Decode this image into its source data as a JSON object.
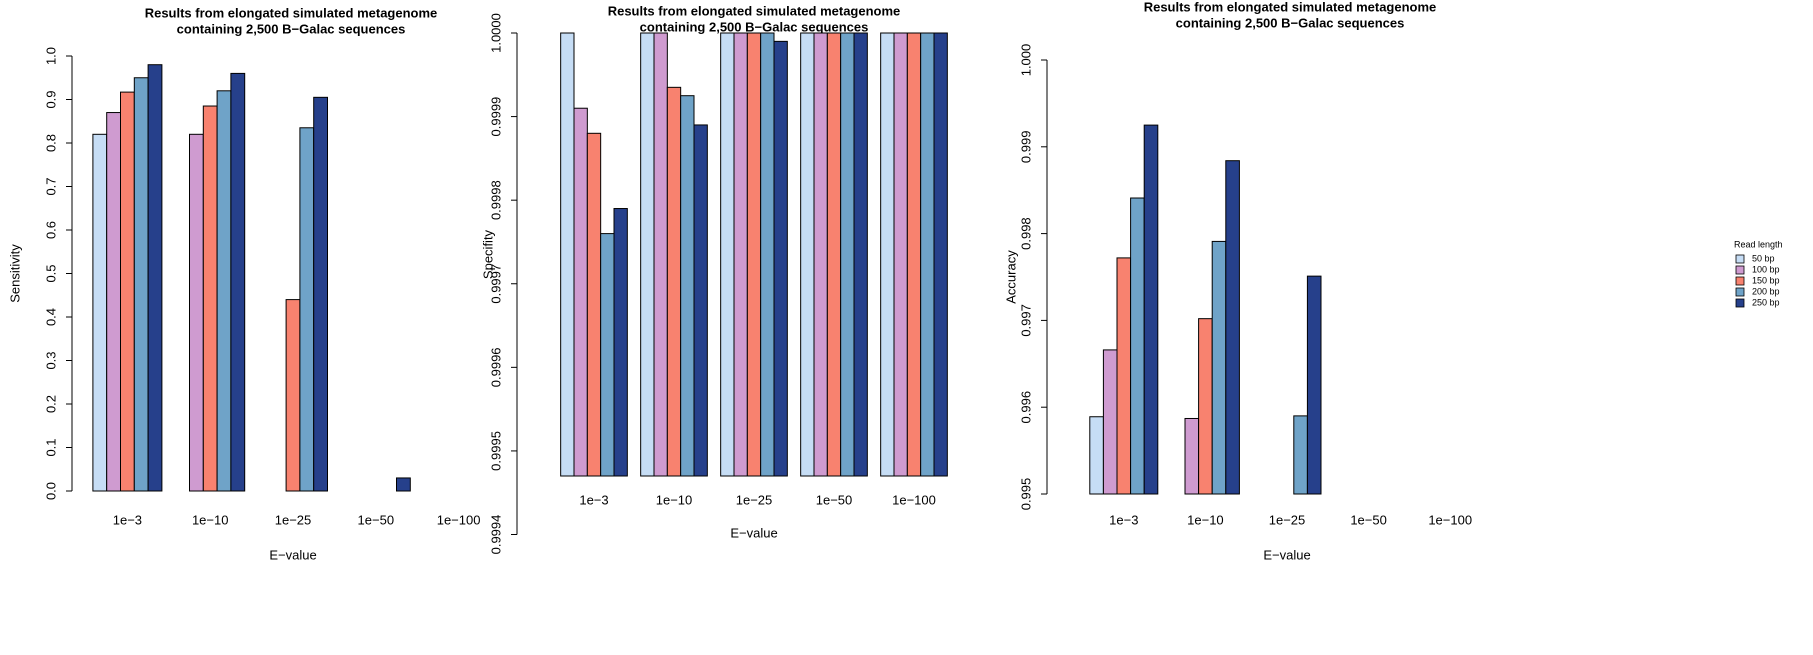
{
  "chart_data": [
    {
      "type": "bar",
      "title": [
        "Results from elongated simulated metagenome",
        "containing 2,500 B−Galac sequences"
      ],
      "x_label": "E−value",
      "y_label": "Sensitivity",
      "categories": [
        "1e−3",
        "1e−10",
        "1e−25",
        "1e−50",
        "1e−100"
      ],
      "series": [
        {
          "name": "50 bp",
          "color": "#c6ddf5",
          "values": [
            0.82,
            0,
            0,
            0,
            0
          ]
        },
        {
          "name": "100 bp",
          "color": "#cf9bd0",
          "values": [
            0.87,
            0.82,
            0,
            0,
            0
          ]
        },
        {
          "name": "150 bp",
          "color": "#f8826f",
          "values": [
            0.917,
            0.885,
            0.44,
            0,
            0
          ]
        },
        {
          "name": "200 bp",
          "color": "#6fa3c8",
          "values": [
            0.95,
            0.92,
            0.835,
            0,
            0
          ]
        },
        {
          "name": "250 bp",
          "color": "#26408b",
          "values": [
            0.98,
            0.96,
            0.905,
            0.03,
            0
          ]
        }
      ],
      "ylim": [
        0,
        1
      ],
      "yticks": [
        {
          "value": 0,
          "label": "0.0"
        },
        0.1,
        0.2,
        0.3,
        0.4,
        0.5,
        0.6,
        0.7,
        0.8,
        0.9,
        {
          "value": 1,
          "label": "1.0"
        }
      ]
    },
    {
      "type": "bar",
      "title": [
        "Results from elongated simulated metagenome",
        "containing 2,500 B−Galac sequences"
      ],
      "x_label": "E−value",
      "y_label": "Specifity",
      "categories": [
        "1e−3",
        "1e−10",
        "1e−25",
        "1e−50",
        "1e−100"
      ],
      "series": [
        {
          "name": "50 bp",
          "color": "#c6ddf5",
          "values": [
            1,
            1,
            1,
            1,
            1
          ]
        },
        {
          "name": "100 bp",
          "color": "#cf9bd0",
          "values": [
            0.99991,
            1,
            1,
            1,
            1
          ]
        },
        {
          "name": "150 bp",
          "color": "#f8826f",
          "values": [
            0.99988,
            0.999935,
            1,
            1,
            1
          ]
        },
        {
          "name": "200 bp",
          "color": "#6fa3c8",
          "values": [
            0.99976,
            0.999925,
            1,
            1,
            1
          ]
        },
        {
          "name": "250 bp",
          "color": "#26408b",
          "values": [
            0.99979,
            0.99989,
            0.99999,
            1,
            1
          ]
        }
      ],
      "ylim": [
        0.99947,
        1
      ],
      "yticks": [
        0.9994,
        0.9995,
        0.9996,
        0.9997,
        0.9998,
        0.9999,
        {
          "value": 1,
          "label": "1.0000"
        }
      ]
    },
    {
      "type": "bar",
      "title": [
        "Results from elongated simulated metagenome",
        "containing 2,500 B−Galac sequences"
      ],
      "x_label": "E−value",
      "y_label": "Accuracy",
      "legend_title": "Read length",
      "legend": "right",
      "categories": [
        "1e−3",
        "1e−10",
        "1e−25",
        "1e−50",
        "1e−100"
      ],
      "series": [
        {
          "name": "50 bp",
          "color": "#c6ddf5",
          "values": [
            0.99589,
            null,
            null,
            null,
            null
          ]
        },
        {
          "name": "100 bp",
          "color": "#cf9bd0",
          "values": [
            0.99666,
            0.99587,
            null,
            null,
            null
          ]
        },
        {
          "name": "150 bp",
          "color": "#f8826f",
          "values": [
            0.99772,
            0.99702,
            null,
            null,
            null
          ]
        },
        {
          "name": "200 bp",
          "color": "#6fa3c8",
          "values": [
            0.99841,
            0.99791,
            0.9959,
            null,
            null
          ]
        },
        {
          "name": "250 bp",
          "color": "#26408b",
          "values": [
            0.99925,
            0.99884,
            0.99751,
            null,
            null
          ]
        }
      ],
      "ylim": [
        0.995,
        1
      ],
      "yticks": [
        0.995,
        0.996,
        0.997,
        0.998,
        0.999,
        {
          "value": 1,
          "label": "1.000"
        }
      ]
    }
  ]
}
